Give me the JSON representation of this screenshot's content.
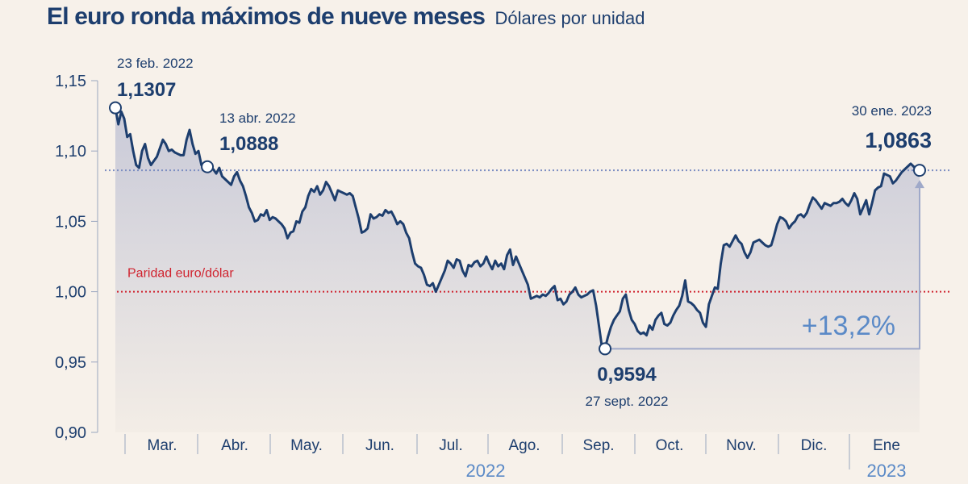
{
  "header": {
    "title": "El euro ronda máximos de nueve meses",
    "subtitle": "Dólares por unidad"
  },
  "colors": {
    "background": "#f7f1ea",
    "line": "#1d3e6e",
    "axis_text": "#1d3e6e",
    "year_text": "#5b8ac7",
    "parity": "#d0232f",
    "reference_dotted": "#7d8ec2",
    "change_label": "#5b8ac7",
    "bracket": "#9fa9c9",
    "area_top": "#c9cad8",
    "area_bottom": "#f3ede6"
  },
  "chart_data": {
    "type": "line",
    "title": "El euro ronda máximos de nueve meses",
    "subtitle": "Dólares por unidad",
    "ylim": [
      0.9,
      1.15
    ],
    "y_ticks": [
      "1,15",
      "1,10",
      "1,05",
      "1,00",
      "0,95",
      "0,90"
    ],
    "y_tick_values": [
      1.15,
      1.1,
      1.05,
      1.0,
      0.95,
      0.9
    ],
    "months": [
      "Mar.",
      "Abr.",
      "May.",
      "Jun.",
      "Jul.",
      "Ago.",
      "Sep.",
      "Oct.",
      "Nov.",
      "Dic.",
      "Ene"
    ],
    "years": [
      "2022",
      "2023"
    ],
    "x_range": [
      "2022-02-23",
      "2023-01-30"
    ],
    "grid": false,
    "series": [
      {
        "values": [
          1.1307,
          1.119,
          1.128,
          1.123,
          1.11,
          1.112,
          1.1,
          1.09,
          1.088,
          1.1,
          1.105,
          1.095,
          1.09,
          1.093,
          1.096,
          1.102,
          1.108,
          1.105,
          1.1,
          1.101,
          1.099,
          1.098,
          1.097,
          1.097,
          1.108,
          1.115,
          1.105,
          1.098,
          1.1,
          1.09,
          1.089,
          1.0888,
          1.087,
          1.087,
          1.084,
          1.088,
          1.082,
          1.08,
          1.078,
          1.076,
          1.082,
          1.085,
          1.079,
          1.075,
          1.068,
          1.06,
          1.056,
          1.05,
          1.051,
          1.055,
          1.054,
          1.058,
          1.051,
          1.053,
          1.052,
          1.05,
          1.048,
          1.045,
          1.038,
          1.042,
          1.043,
          1.05,
          1.049,
          1.057,
          1.06,
          1.068,
          1.073,
          1.071,
          1.075,
          1.069,
          1.072,
          1.078,
          1.075,
          1.07,
          1.065,
          1.072,
          1.071,
          1.07,
          1.069,
          1.07,
          1.068,
          1.06,
          1.052,
          1.042,
          1.043,
          1.045,
          1.055,
          1.052,
          1.053,
          1.055,
          1.054,
          1.058,
          1.056,
          1.057,
          1.053,
          1.048,
          1.05,
          1.048,
          1.042,
          1.038,
          1.028,
          1.02,
          1.018,
          1.017,
          1.012,
          1.005,
          1.004,
          1.006,
          1.0,
          1.005,
          1.01,
          1.015,
          1.022,
          1.02,
          1.017,
          1.023,
          1.022,
          1.015,
          1.011,
          1.019,
          1.018,
          1.021,
          1.022,
          1.018,
          1.02,
          1.025,
          1.02,
          1.016,
          1.022,
          1.018,
          1.02,
          1.016,
          1.026,
          1.03,
          1.019,
          1.025,
          1.02,
          1.015,
          1.01,
          1.005,
          0.995,
          0.996,
          0.997,
          0.996,
          0.998,
          0.997,
          0.999,
          1.002,
          1.004,
          0.994,
          0.995,
          0.991,
          0.993,
          0.998,
          1.0,
          1.003,
          0.998,
          0.996,
          0.997,
          0.998,
          1.0,
          1.001,
          0.99,
          0.975,
          0.96,
          0.9594,
          0.968,
          0.975,
          0.98,
          0.983,
          0.986,
          0.995,
          0.998,
          0.987,
          0.98,
          0.977,
          0.972,
          0.97,
          0.971,
          0.969,
          0.976,
          0.973,
          0.98,
          0.983,
          0.985,
          0.977,
          0.976,
          0.978,
          0.983,
          0.987,
          0.99,
          0.997,
          1.008,
          0.993,
          0.992,
          0.99,
          0.987,
          0.985,
          0.978,
          0.975,
          0.991,
          0.997,
          1.003,
          1.002,
          1.02,
          1.033,
          1.034,
          1.032,
          1.036,
          1.04,
          1.036,
          1.034,
          1.028,
          1.024,
          1.028,
          1.035,
          1.036,
          1.037,
          1.035,
          1.033,
          1.032,
          1.033,
          1.04,
          1.048,
          1.053,
          1.052,
          1.05,
          1.045,
          1.048,
          1.05,
          1.054,
          1.055,
          1.053,
          1.056,
          1.062,
          1.067,
          1.065,
          1.062,
          1.059,
          1.063,
          1.062,
          1.061,
          1.063,
          1.063,
          1.064,
          1.066,
          1.063,
          1.061,
          1.065,
          1.07,
          1.066,
          1.055,
          1.06,
          1.065,
          1.055,
          1.063,
          1.072,
          1.074,
          1.075,
          1.084,
          1.083,
          1.082,
          1.077,
          1.079,
          1.082,
          1.085,
          1.087,
          1.089,
          1.091,
          1.089,
          1.086,
          1.0863
        ]
      }
    ],
    "annotations": [
      {
        "date_label": "23 feb. 2022",
        "value_label": "1,1307"
      },
      {
        "date_label": "13 abr. 2022",
        "value_label": "1,0888"
      },
      {
        "date_label": "27 sept. 2022",
        "value_label": "0,9594"
      },
      {
        "date_label": "30 ene. 2023",
        "value_label": "1,0863"
      }
    ],
    "reference_lines": [
      {
        "value": 1.0,
        "label": "Paridad euro/dólar"
      },
      {
        "value": 1.0863,
        "label": ""
      }
    ],
    "change_label": "+13,2%"
  }
}
